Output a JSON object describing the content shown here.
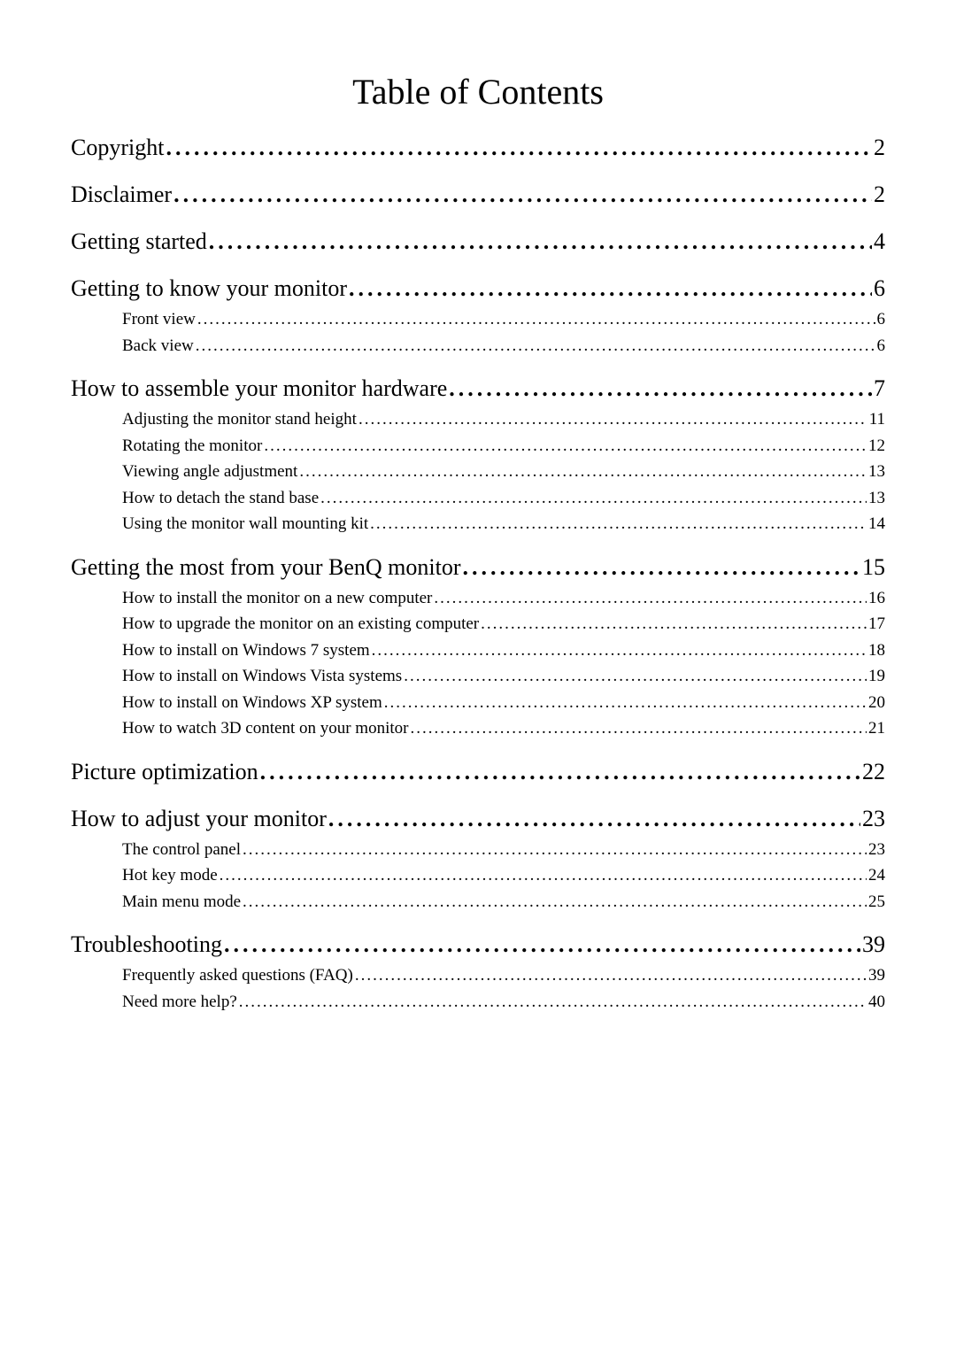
{
  "title": "Table of Contents",
  "sections": [
    {
      "label": "Copyright",
      "page": "2",
      "children": []
    },
    {
      "label": "Disclaimer",
      "page": "2",
      "children": []
    },
    {
      "label": "Getting started",
      "page": "4",
      "children": []
    },
    {
      "label": "Getting to know your monitor",
      "page": "6",
      "children": [
        {
          "label": "Front view",
          "page": "6"
        },
        {
          "label": "Back view",
          "page": "6"
        }
      ]
    },
    {
      "label": "How to assemble your monitor hardware",
      "page": "7",
      "children": [
        {
          "label": "Adjusting the monitor stand height",
          "page": "11"
        },
        {
          "label": "Rotating the monitor",
          "page": "12"
        },
        {
          "label": "Viewing angle adjustment",
          "page": "13"
        },
        {
          "label": "How to detach the stand base",
          "page": "13"
        },
        {
          "label": "Using the monitor wall mounting kit",
          "page": "14"
        }
      ]
    },
    {
      "label": "Getting the most from your BenQ monitor",
      "page": "15",
      "children": [
        {
          "label": "How to install the monitor on a new computer",
          "page": "16"
        },
        {
          "label": "How to upgrade the monitor on an existing computer",
          "page": "17"
        },
        {
          "label": "How to install on Windows 7 system",
          "page": "18"
        },
        {
          "label": "How to install on Windows Vista systems",
          "page": "19"
        },
        {
          "label": "How to install on Windows XP system",
          "page": "20"
        },
        {
          "label": "How to watch 3D content on your monitor",
          "page": "21"
        }
      ]
    },
    {
      "label": "Picture optimization",
      "page": "22",
      "children": []
    },
    {
      "label": "How to adjust your monitor",
      "page": "23",
      "children": [
        {
          "label": "The control panel",
          "page": "23"
        },
        {
          "label": "Hot key mode",
          "page": "24"
        },
        {
          "label": "Main menu mode",
          "page": "25"
        }
      ]
    },
    {
      "label": "Troubleshooting",
      "page": "39",
      "children": [
        {
          "label": "Frequently asked questions (FAQ)",
          "page": "39"
        },
        {
          "label": "Need more help?",
          "page": "40"
        }
      ]
    }
  ],
  "colors": {
    "background": "#ffffff",
    "text": "#000000"
  },
  "typography": {
    "title_fontsize": 40,
    "level1_fontsize": 26,
    "level2_fontsize": 19,
    "font_family": "Georgia, Times New Roman, serif"
  }
}
